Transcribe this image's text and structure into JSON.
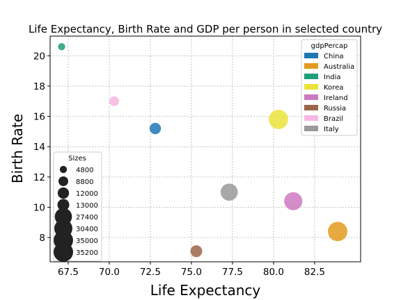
{
  "chart_data": {
    "type": "scatter",
    "title": "Life Expectancy, Birth Rate and GDP per person in selected country",
    "xlabel": "Life Expectancy",
    "ylabel": "Birth Rate",
    "xlim": [
      66.4,
      85.3
    ],
    "ylim": [
      6.4,
      21.3
    ],
    "xticks": [
      67.5,
      70.0,
      72.5,
      75.0,
      77.5,
      80.0,
      82.5
    ],
    "xtick_labels": [
      "67.5",
      "70.0",
      "72.5",
      "75.0",
      "77.5",
      "80.0",
      "82.5"
    ],
    "yticks": [
      8,
      10,
      12,
      14,
      16,
      18,
      20
    ],
    "ytick_labels": [
      "8",
      "10",
      "12",
      "14",
      "16",
      "18",
      "20"
    ],
    "grid": true,
    "color_legend": {
      "title": "gdpPercap",
      "position": "top-right",
      "entries": [
        {
          "label": "China",
          "color": "#1f77b4"
        },
        {
          "label": "Australia",
          "color": "#e39b1f"
        },
        {
          "label": "India",
          "color": "#1f9e7a"
        },
        {
          "label": "Korea",
          "color": "#ebe33a"
        },
        {
          "label": "Ireland",
          "color": "#cc79c0"
        },
        {
          "label": "Russia",
          "color": "#9c6548"
        },
        {
          "label": "Brazil",
          "color": "#f7b6e3"
        },
        {
          "label": "Italy",
          "color": "#999999"
        }
      ]
    },
    "size_legend": {
      "title": "Sizes",
      "position": "lower-left",
      "entries": [
        {
          "label": "4800",
          "value": 4800
        },
        {
          "label": "8800",
          "value": 8800
        },
        {
          "label": "12000",
          "value": 12000
        },
        {
          "label": "13000",
          "value": 13000
        },
        {
          "label": "27400",
          "value": 27400
        },
        {
          "label": "30400",
          "value": 30400
        },
        {
          "label": "35000",
          "value": 35000
        },
        {
          "label": "35200",
          "value": 35200
        }
      ]
    },
    "points": [
      {
        "country": "China",
        "x": 72.8,
        "y": 15.2,
        "gdp": 12000
      },
      {
        "country": "Australia",
        "x": 83.9,
        "y": 8.4,
        "gdp": 35200
      },
      {
        "country": "India",
        "x": 67.1,
        "y": 20.6,
        "gdp": 4800
      },
      {
        "country": "Korea",
        "x": 80.3,
        "y": 15.8,
        "gdp": 35000
      },
      {
        "country": "Ireland",
        "x": 81.2,
        "y": 10.4,
        "gdp": 30400
      },
      {
        "country": "Russia",
        "x": 75.3,
        "y": 7.1,
        "gdp": 13000
      },
      {
        "country": "Brazil",
        "x": 70.3,
        "y": 17.0,
        "gdp": 8800
      },
      {
        "country": "Italy",
        "x": 77.3,
        "y": 11.0,
        "gdp": 27400
      }
    ]
  }
}
